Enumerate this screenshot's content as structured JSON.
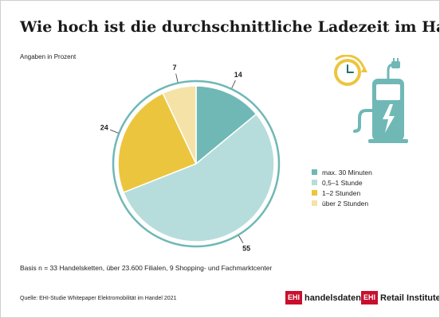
{
  "title": "Wie hoch ist die durchschnittliche Ladezeit im Handel?",
  "subtitle": "Angaben in Prozent",
  "colors": {
    "accent_teal": "#6fb8b6",
    "light_teal": "#b7dcdc",
    "yellow": "#ecc53e",
    "light_yellow": "#f4e2a7",
    "logo_red": "#c8102e"
  },
  "chart_data": {
    "type": "pie",
    "categories": [
      "max. 30 Minuten",
      "0,5–1 Stunde",
      "1–2 Stunden",
      "über 2 Stunden"
    ],
    "values": [
      14,
      55,
      24,
      7
    ],
    "colors": [
      "#6fb8b6",
      "#b7dcdc",
      "#ecc53e",
      "#f4e2a7"
    ],
    "data_labels": [
      "14",
      "55",
      "24",
      "7"
    ],
    "legend_position": "right"
  },
  "legend": [
    {
      "label": "max. 30 Minuten",
      "color": "#6fb8b6"
    },
    {
      "label": "0,5–1 Stunde",
      "color": "#b7dcdc"
    },
    {
      "label": "1–2 Stunden",
      "color": "#ecc53e"
    },
    {
      "label": "über 2 Stunden",
      "color": "#f4e2a7"
    }
  ],
  "basis": "Basis n = 33 Handelsketten, über 23.600 Filialen, 9 Shopping- und Fachmarktcenter",
  "source": "Quelle: EHI-Studie Whitepaper Elektromobilität im Handel 2021",
  "logos": {
    "handelsdaten": {
      "box": "EHI",
      "text": "handelsdaten.de"
    },
    "retail": {
      "box": "EHI",
      "text": "Retail Institute"
    }
  },
  "icons": [
    "clock-refresh-icon",
    "charging-station-icon"
  ]
}
